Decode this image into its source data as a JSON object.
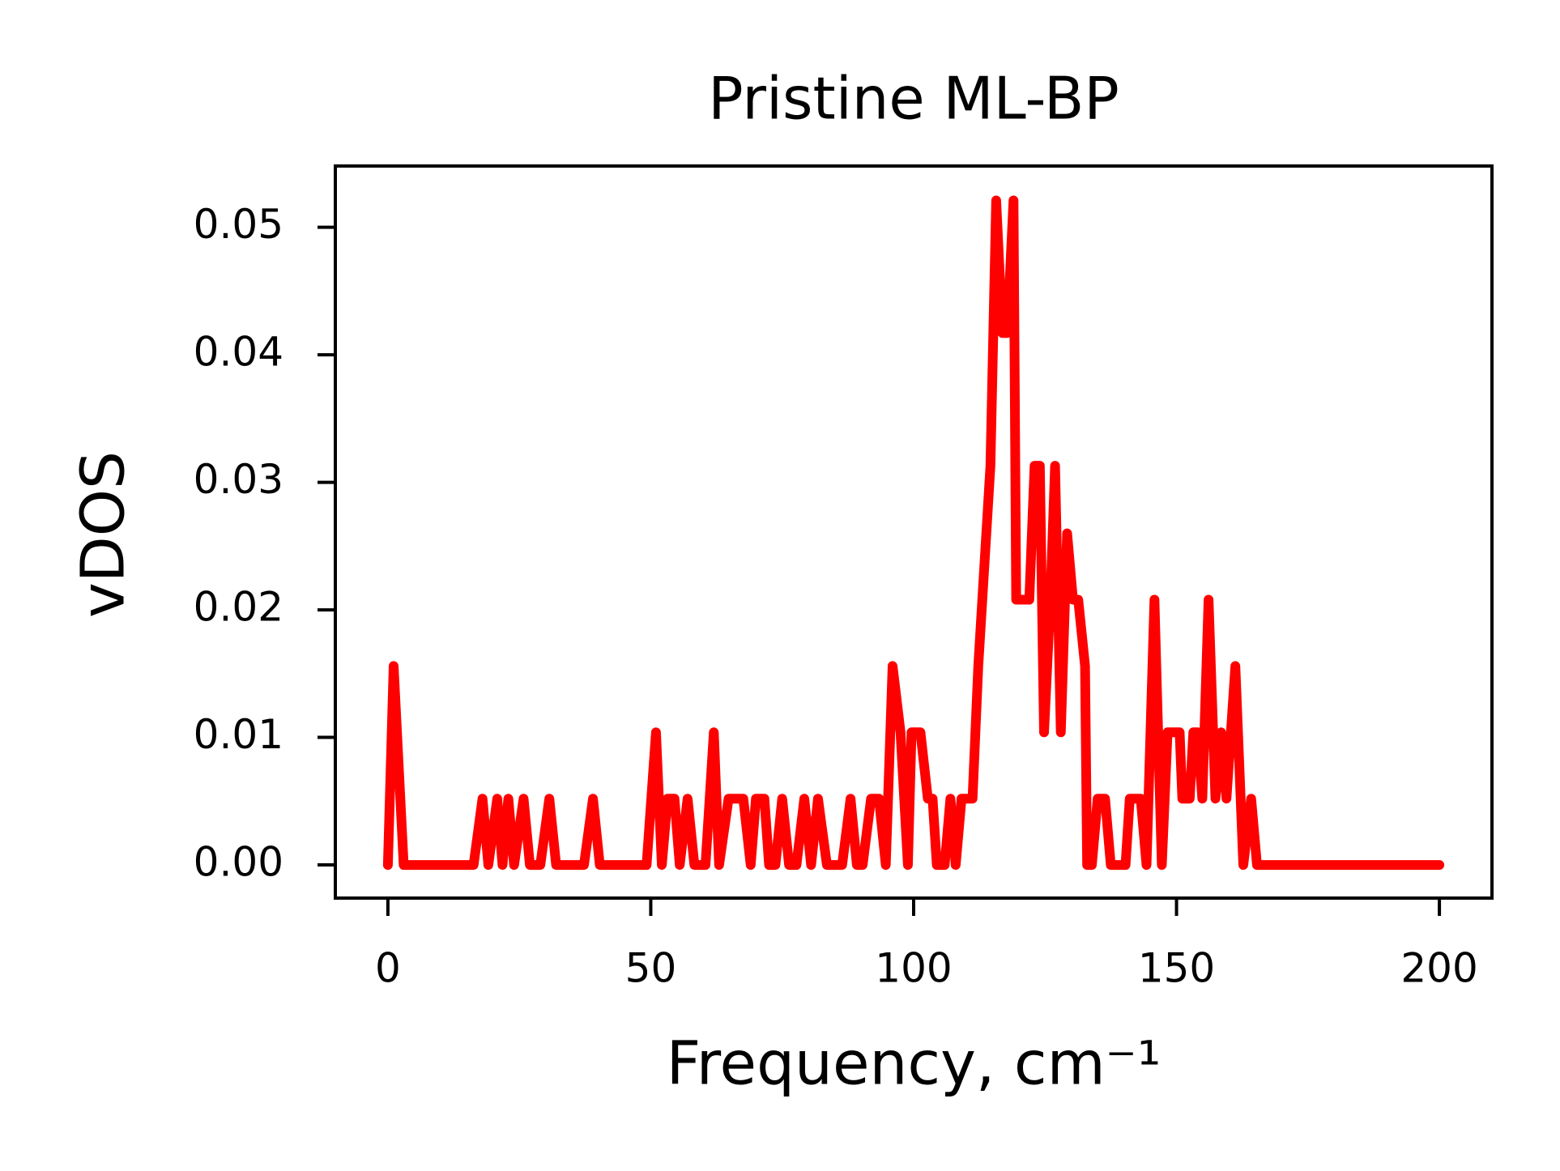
{
  "chart_data": {
    "type": "line",
    "title": "Pristine ML-BP",
    "xlabel": "Frequency, cm⁻¹",
    "ylabel": "vDOS",
    "color": "#ff0000",
    "x": [
      0,
      1.1,
      3,
      16.3,
      18,
      19.1,
      20.8,
      21.8,
      22.9,
      24,
      25.8,
      27,
      29,
      30.7,
      32,
      37.3,
      39,
      40.3,
      49.2,
      51,
      52.1,
      53.2,
      54.5,
      55.5,
      57,
      58.3,
      60.4,
      62,
      63,
      64.8,
      66.3,
      67.6,
      69,
      70,
      71.6,
      72.5,
      73.7,
      75,
      76.3,
      77.7,
      79.2,
      80.5,
      81.8,
      83.5,
      86.4,
      88,
      89.2,
      90.3,
      91.9,
      93.4,
      94.7,
      96,
      97.5,
      98.9,
      99.6,
      101.3,
      102.7,
      103.6,
      104.4,
      105.9,
      107,
      108,
      109.1,
      111.2,
      112.3,
      114.6,
      115.7,
      116.9,
      117.8,
      119,
      119.5,
      122,
      123,
      124,
      124.8,
      126,
      126.9,
      128,
      129.2,
      130.3,
      131.3,
      132.6,
      133,
      133.9,
      135,
      136.4,
      137.5,
      140.3,
      141.1,
      143.2,
      144.3,
      145.8,
      147.2,
      148.3,
      150.6,
      151.1,
      152.5,
      153.2,
      154,
      154.9,
      156.1,
      157.4,
      158.5,
      159.5,
      161.2,
      162.7,
      164.2,
      165.3,
      200
    ],
    "values": [
      0,
      0.0156,
      0,
      0,
      0.0052,
      0,
      0.0052,
      0,
      0.0052,
      0,
      0.0052,
      0,
      0,
      0.0052,
      0,
      0,
      0.0052,
      0,
      0,
      0.0104,
      0,
      0.0052,
      0.0052,
      0,
      0.0052,
      0,
      0,
      0.0104,
      0,
      0.0052,
      0.0052,
      0.0052,
      0,
      0.0052,
      0.0052,
      0,
      0,
      0.0052,
      0,
      0,
      0.0052,
      0,
      0.0052,
      0,
      0,
      0.0052,
      0,
      0,
      0.0052,
      0.0052,
      0,
      0.0156,
      0.0104,
      0,
      0.0104,
      0.0104,
      0.0052,
      0.0052,
      0,
      0,
      0.0052,
      0,
      0.0052,
      0.0052,
      0.0156,
      0.0313,
      0.0521,
      0.0417,
      0.0417,
      0.0521,
      0.0208,
      0.0208,
      0.0313,
      0.0313,
      0.0104,
      0.0208,
      0.0313,
      0.0104,
      0.026,
      0.0208,
      0.0208,
      0.0156,
      0,
      0,
      0.0052,
      0.0052,
      0,
      0,
      0.0052,
      0.0052,
      0,
      0.0208,
      0,
      0.0104,
      0.0104,
      0.0052,
      0.0052,
      0.0104,
      0.0104,
      0.0052,
      0.0208,
      0.0052,
      0.0104,
      0.0052,
      0.0156,
      0,
      0.0052,
      0,
      0
    ],
    "xlim": [
      -10,
      210
    ],
    "ylim": [
      -0.0026,
      0.0548
    ],
    "xticks": [
      0,
      50,
      100,
      150,
      200
    ],
    "yticks": [
      {
        "value": 0,
        "label": "0.00"
      },
      0.01,
      0.02,
      0.03,
      0.04,
      0.05
    ]
  }
}
